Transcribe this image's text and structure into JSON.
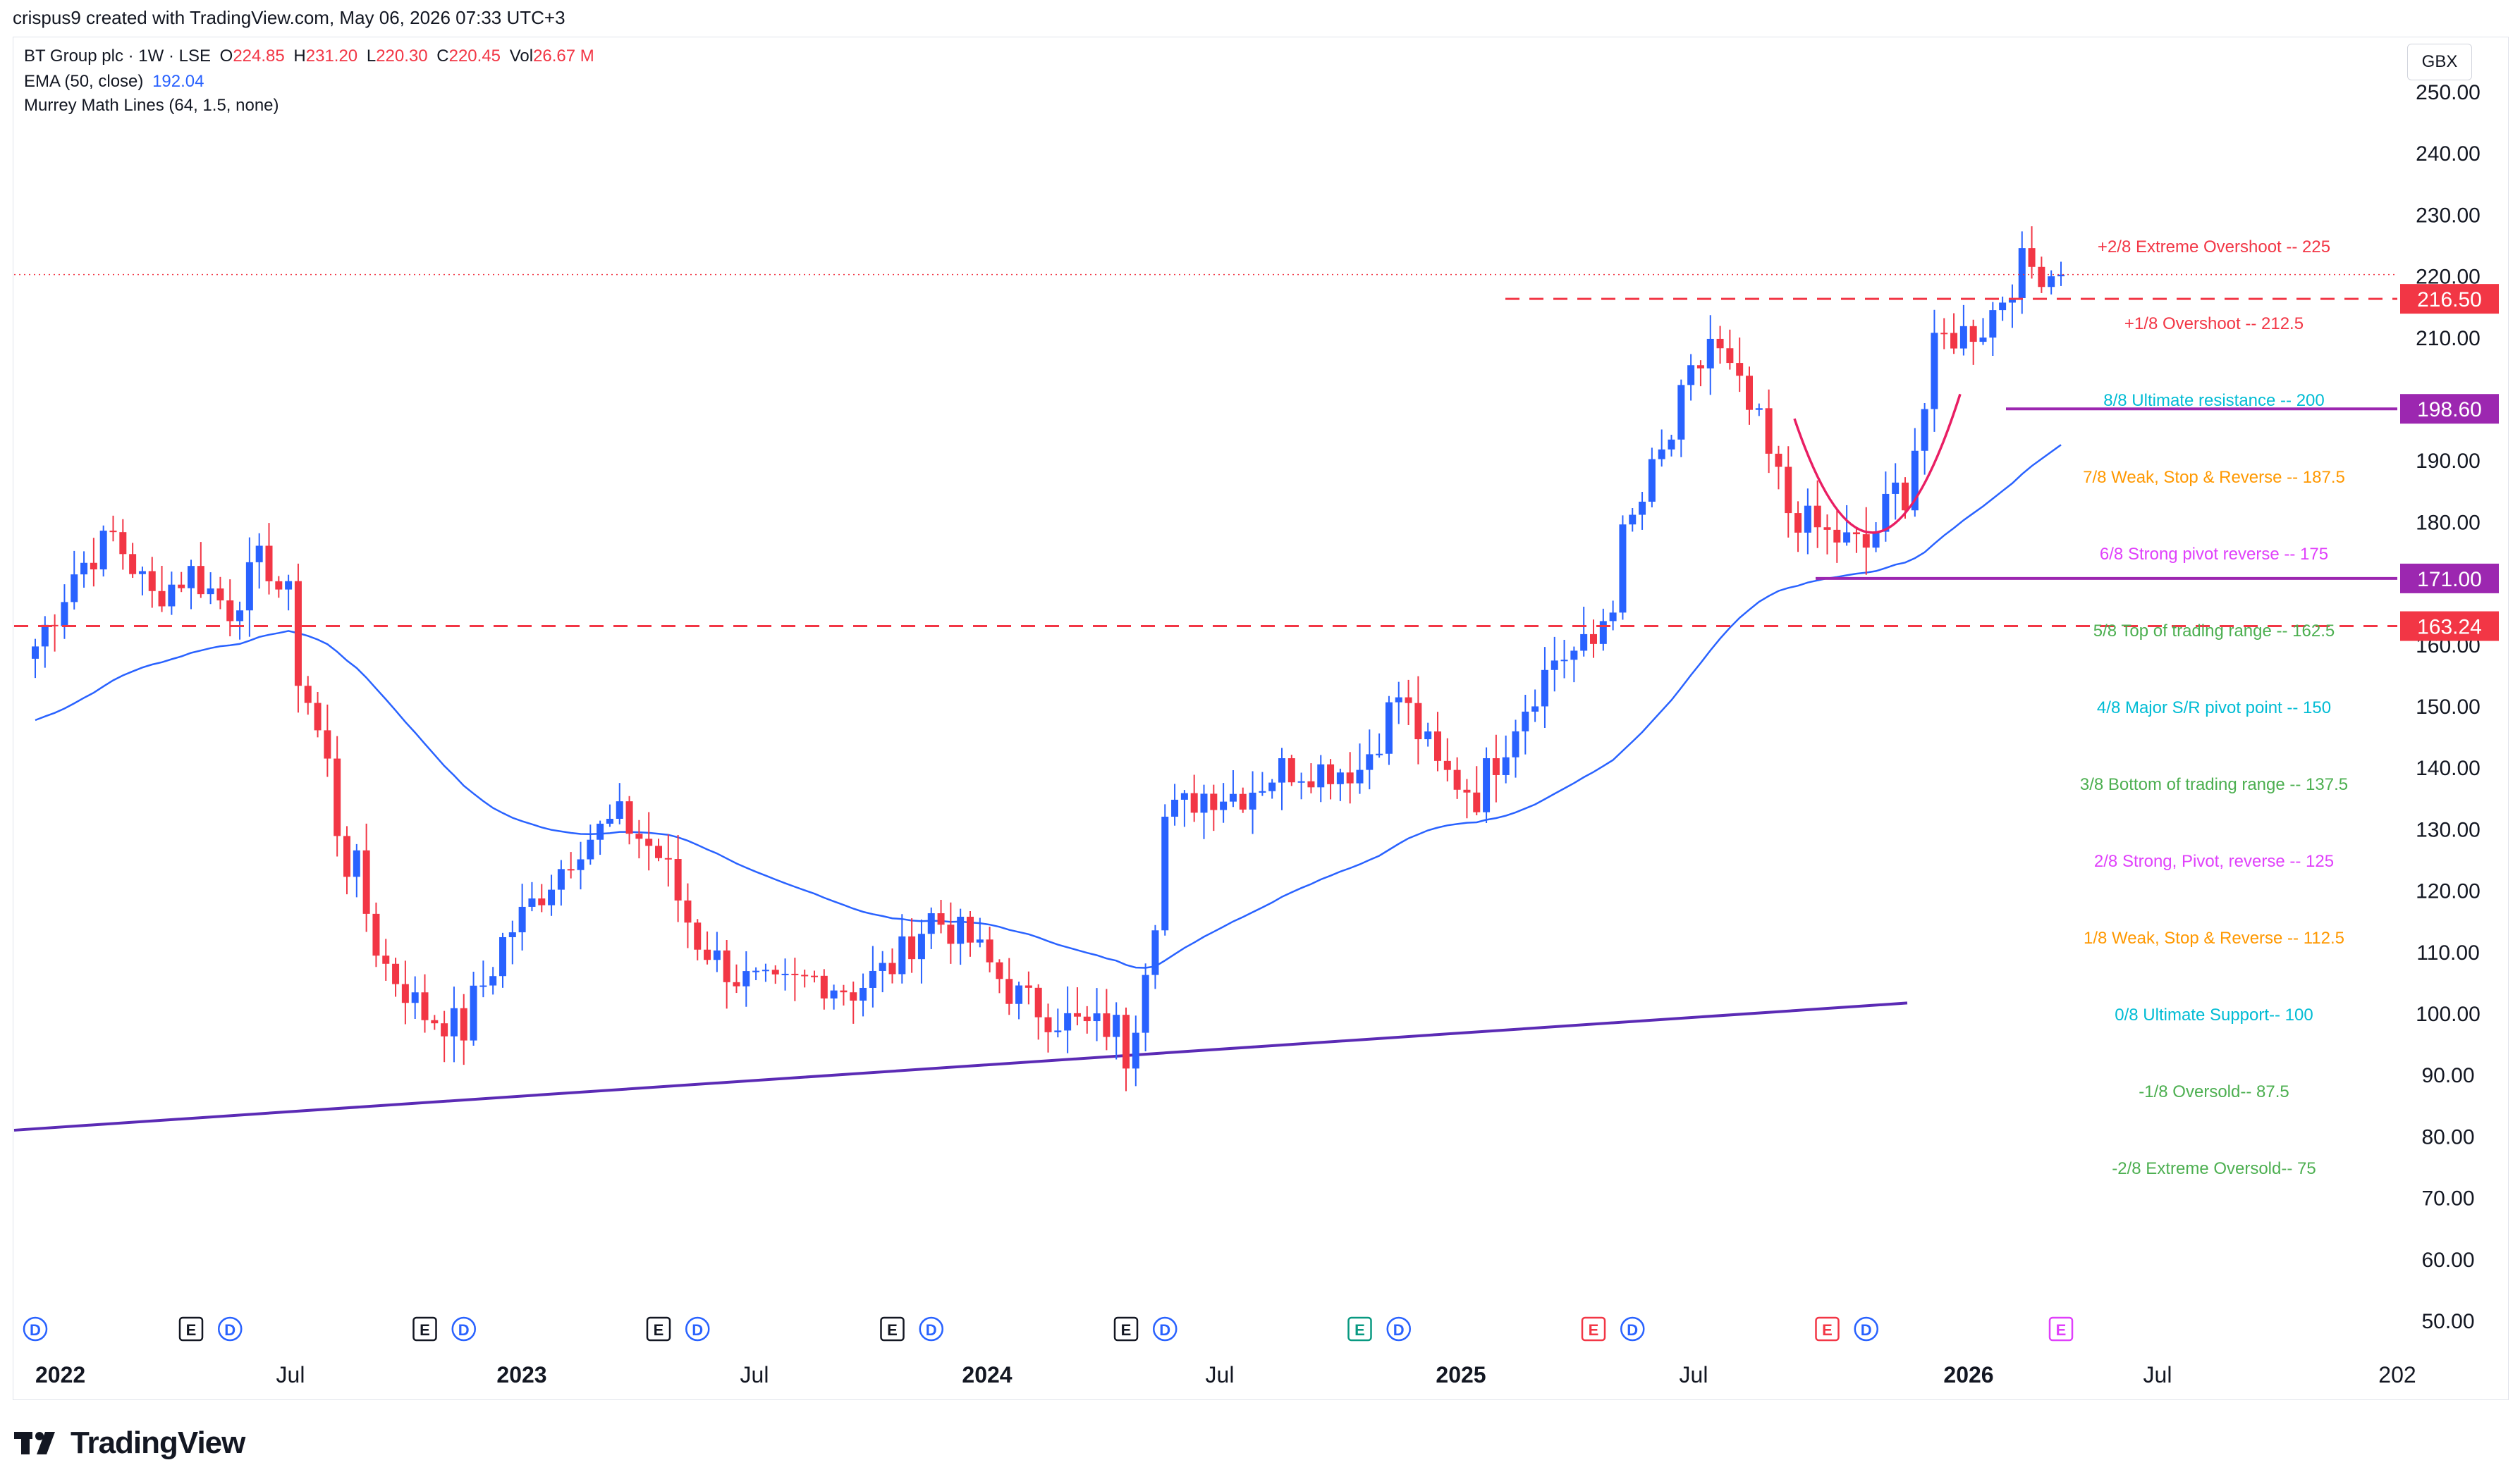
{
  "header": {
    "attribution": "crispus9 created with TradingView.com, May 06, 2026 07:33 UTC+3"
  },
  "legend": {
    "symbol": "BT Group plc · 1W · LSE",
    "open_label": "O",
    "open": "224.85",
    "high_label": "H",
    "high": "231.20",
    "low_label": "L",
    "low": "220.30",
    "close_label": "C",
    "close": "220.45",
    "vol_label": "Vol",
    "vol": "26.67 M",
    "ema_label": "EMA (50, close)",
    "ema_value": "192.04",
    "murrey_label": "Murrey Math Lines (64, 1.5, none)"
  },
  "currency": "GBX",
  "footer": {
    "brand": "TradingView"
  },
  "colors": {
    "up": "#2962ff",
    "down": "#f23645",
    "ema": "#2962ff",
    "resistance": "#f23645",
    "support": "#9c27b0",
    "trendline": "#5b2bb5"
  },
  "chart_data": {
    "type": "candlestick",
    "title": "BT Group plc · 1W · LSE",
    "ylim": [
      50,
      255
    ],
    "y_ticks": [
      "250.00",
      "240.00",
      "230.00",
      "220.00",
      "210.00",
      "190.00",
      "180.00",
      "160.00",
      "150.00",
      "140.00",
      "130.00",
      "120.00",
      "110.00",
      "100.00",
      "90.00",
      "80.00",
      "70.00",
      "60.00",
      "50.00"
    ],
    "x_ticks": [
      "2022",
      "Jul",
      "2023",
      "Jul",
      "2024",
      "Jul",
      "2025",
      "Jul",
      "2026",
      "Jul",
      "202"
    ],
    "price_labels": [
      {
        "text": "216.50",
        "value": 216.5,
        "color": "#f23645"
      },
      {
        "text": "198.60",
        "value": 198.6,
        "color": "#9c27b0"
      },
      {
        "text": "171.00",
        "value": 171.0,
        "color": "#9c27b0"
      },
      {
        "text": "163.24",
        "value": 163.24,
        "color": "#f23645"
      }
    ],
    "murrey_lines": [
      {
        "text": "+2/8 Extreme Overshoot --  225",
        "value": 225,
        "color": "#f23645"
      },
      {
        "text": "+1/8 Overshoot --  212.5",
        "value": 212.5,
        "color": "#f23645"
      },
      {
        "text": "8/8 Ultimate resistance --  200",
        "value": 200,
        "color": "#00bcd4"
      },
      {
        "text": "7/8 Weak, Stop & Reverse --  187.5",
        "value": 187.5,
        "color": "#ff9800"
      },
      {
        "text": "6/8 Strong pivot reverse --  175",
        "value": 175,
        "color": "#e040fb"
      },
      {
        "text": "5/8 Top of trading range --  162.5",
        "value": 162.5,
        "color": "#4caf50"
      },
      {
        "text": "4/8 Major S/R pivot point --  150",
        "value": 150,
        "color": "#00bcd4"
      },
      {
        "text": "3/8 Bottom of trading range --  137.5",
        "value": 137.5,
        "color": "#4caf50"
      },
      {
        "text": "2/8 Strong, Pivot, reverse --  125",
        "value": 125,
        "color": "#e040fb"
      },
      {
        "text": "1/8 Weak, Stop & Reverse --  112.5",
        "value": 112.5,
        "color": "#ff9800"
      },
      {
        "text": "0/8 Ultimate Support--  100",
        "value": 100,
        "color": "#00bcd4"
      },
      {
        "text": "-1/8 Oversold--  87.5",
        "value": 87.5,
        "color": "#4caf50"
      },
      {
        "text": "-2/8 Extreme Oversold--  75",
        "value": 75,
        "color": "#4caf50"
      }
    ],
    "events": [
      {
        "type": "D",
        "date": "2022-01"
      },
      {
        "type": "E",
        "date": "2022-05"
      },
      {
        "type": "D",
        "date": "2022-06"
      },
      {
        "type": "E",
        "date": "2022-11"
      },
      {
        "type": "D",
        "date": "2022-12"
      },
      {
        "type": "E",
        "date": "2023-05"
      },
      {
        "type": "D",
        "date": "2023-06"
      },
      {
        "type": "E",
        "date": "2023-11"
      },
      {
        "type": "D",
        "date": "2023-12"
      },
      {
        "type": "E",
        "date": "2024-05"
      },
      {
        "type": "D",
        "date": "2024-06"
      },
      {
        "type": "E",
        "date": "2024-11"
      },
      {
        "type": "D",
        "date": "2024-12"
      },
      {
        "type": "E",
        "date": "2025-05"
      },
      {
        "type": "D",
        "date": "2025-06"
      },
      {
        "type": "E",
        "date": "2025-11"
      },
      {
        "type": "D",
        "date": "2025-12"
      },
      {
        "type": "E",
        "date": "2026-05"
      }
    ],
    "weekly_close": [
      {
        "date": "2022-01",
        "close": 160
      },
      {
        "date": "2022-02",
        "close": 172
      },
      {
        "date": "2022-03",
        "close": 178
      },
      {
        "date": "2022-04",
        "close": 168
      },
      {
        "date": "2022-05",
        "close": 172
      },
      {
        "date": "2022-06",
        "close": 166
      },
      {
        "date": "2022-07",
        "close": 176
      },
      {
        "date": "2022-08",
        "close": 152
      },
      {
        "date": "2022-09",
        "close": 126
      },
      {
        "date": "2022-10",
        "close": 108
      },
      {
        "date": "2022-11",
        "close": 100
      },
      {
        "date": "2022-12",
        "close": 98
      },
      {
        "date": "2023-01",
        "close": 112
      },
      {
        "date": "2023-02",
        "close": 120
      },
      {
        "date": "2023-03",
        "close": 128
      },
      {
        "date": "2023-04",
        "close": 132
      },
      {
        "date": "2023-05",
        "close": 126
      },
      {
        "date": "2023-06",
        "close": 112
      },
      {
        "date": "2023-07",
        "close": 106
      },
      {
        "date": "2023-08",
        "close": 104
      },
      {
        "date": "2023-09",
        "close": 106
      },
      {
        "date": "2023-10",
        "close": 104
      },
      {
        "date": "2023-11",
        "close": 108
      },
      {
        "date": "2023-12",
        "close": 116
      },
      {
        "date": "2024-01",
        "close": 112
      },
      {
        "date": "2024-02",
        "close": 104
      },
      {
        "date": "2024-03",
        "close": 100
      },
      {
        "date": "2024-04",
        "close": 98
      },
      {
        "date": "2024-05",
        "close": 98
      },
      {
        "date": "2024-06",
        "close": 132
      },
      {
        "date": "2024-07",
        "close": 136
      },
      {
        "date": "2024-08",
        "close": 136
      },
      {
        "date": "2024-09",
        "close": 140
      },
      {
        "date": "2024-10",
        "close": 140
      },
      {
        "date": "2024-11",
        "close": 140
      },
      {
        "date": "2024-12",
        "close": 152
      },
      {
        "date": "2025-01",
        "close": 140
      },
      {
        "date": "2025-02",
        "close": 136
      },
      {
        "date": "2025-03",
        "close": 148
      },
      {
        "date": "2025-04",
        "close": 158
      },
      {
        "date": "2025-05",
        "close": 160
      },
      {
        "date": "2025-06",
        "close": 180
      },
      {
        "date": "2025-07",
        "close": 194
      },
      {
        "date": "2025-08",
        "close": 210
      },
      {
        "date": "2025-09",
        "close": 198
      },
      {
        "date": "2025-10",
        "close": 182
      },
      {
        "date": "2025-11",
        "close": 178
      },
      {
        "date": "2025-12",
        "close": 176
      },
      {
        "date": "2026-01",
        "close": 188
      },
      {
        "date": "2026-02",
        "close": 210
      },
      {
        "date": "2026-03",
        "close": 212
      },
      {
        "date": "2026-04",
        "close": 222
      },
      {
        "date": "2026-05",
        "close": 220.45
      }
    ],
    "ema": {
      "name": "EMA (50, close)",
      "last": 192.04
    }
  }
}
